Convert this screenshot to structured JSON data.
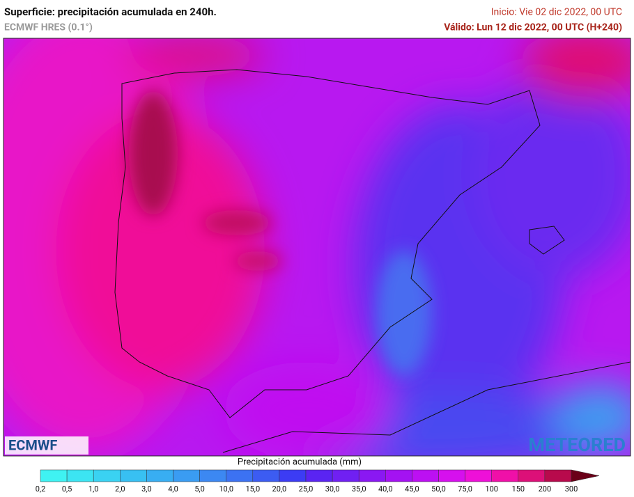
{
  "header": {
    "title": "Superficie: precipitación acumulada en 240h.",
    "model": "ECMWF HRES (0.1°)",
    "init": "Inicio: Vie 02 dic 2022, 00 UTC",
    "valid": "Válido: Lun 12 dic 2022, 00 UTC (H+240)"
  },
  "logos": {
    "left": "ECMWF",
    "right": "METEORED"
  },
  "colorbar": {
    "label": "Precipitación acumulada (mm)",
    "ticks": [
      "0,2",
      "0,5",
      "1,0",
      "2,0",
      "3,0",
      "4,0",
      "5,0",
      "10,0",
      "15,0",
      "20,0",
      "25,0",
      "30,0",
      "35,0",
      "40,0",
      "45,0",
      "50,0",
      "75,0",
      "100",
      "150",
      "200",
      "300"
    ],
    "colors": [
      "#3ff2f2",
      "#3ce4f2",
      "#3ad2f2",
      "#38c0f2",
      "#38aef2",
      "#3a9cf2",
      "#3c88f2",
      "#3c72f2",
      "#3c5cf2",
      "#3c3cf4",
      "#5a24f2",
      "#7020f2",
      "#8a18f2",
      "#a412f2",
      "#bc10f2",
      "#d610ee",
      "#ee10d8",
      "#f010a8",
      "#dc1078",
      "#b80a4c"
    ],
    "extend_color": "#6a0018"
  }
}
